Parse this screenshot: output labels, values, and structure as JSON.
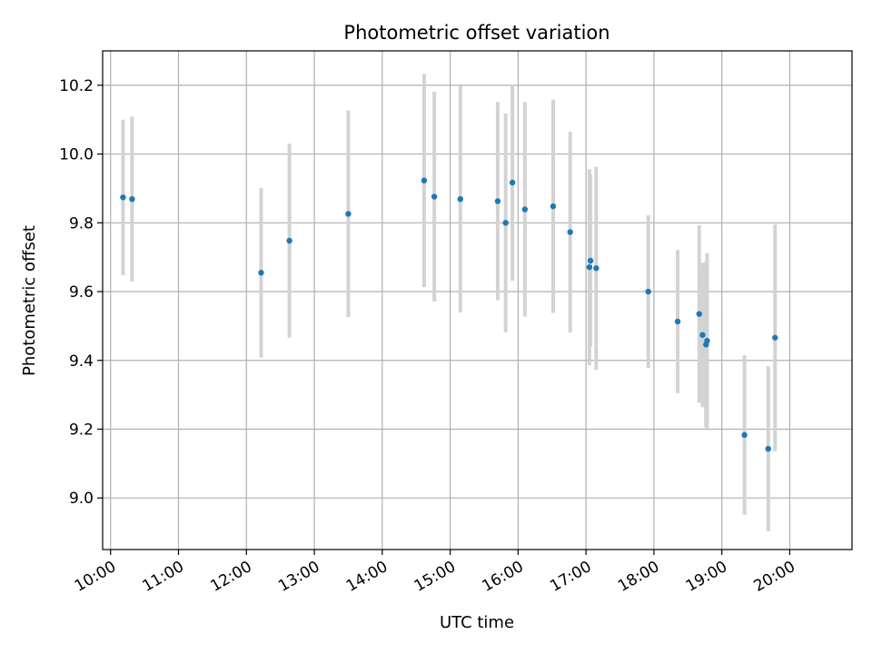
{
  "chart_data": {
    "type": "scatter",
    "title": "Photometric offset variation",
    "xlabel": "UTC time",
    "ylabel": "Photometric offset",
    "x_axis_type": "time",
    "xlim": [
      "09:53",
      "20:55"
    ],
    "ylim": [
      8.85,
      10.3
    ],
    "x_ticks": [
      "10:00",
      "11:00",
      "12:00",
      "13:00",
      "14:00",
      "15:00",
      "16:00",
      "17:00",
      "18:00",
      "19:00",
      "20:00"
    ],
    "y_ticks": [
      9.0,
      9.2,
      9.4,
      9.6,
      9.8,
      10.0,
      10.2
    ],
    "grid": true,
    "point_color": "#1f77b4",
    "errorbar_color": "#d3d3d3",
    "points": [
      {
        "x": "10:11",
        "y": 9.874,
        "yerr": 0.226
      },
      {
        "x": "10:19",
        "y": 9.869,
        "yerr": 0.24
      },
      {
        "x": "12:13",
        "y": 9.655,
        "yerr": 0.247
      },
      {
        "x": "12:38",
        "y": 9.748,
        "yerr": 0.282
      },
      {
        "x": "13:30",
        "y": 9.826,
        "yerr": 0.3
      },
      {
        "x": "14:37",
        "y": 9.923,
        "yerr": 0.31
      },
      {
        "x": "14:46",
        "y": 9.876,
        "yerr": 0.305
      },
      {
        "x": "15:09",
        "y": 9.869,
        "yerr": 0.33
      },
      {
        "x": "15:42",
        "y": 9.863,
        "yerr": 0.288
      },
      {
        "x": "15:49",
        "y": 9.8,
        "yerr": 0.318
      },
      {
        "x": "15:55",
        "y": 9.917,
        "yerr": 0.285
      },
      {
        "x": "16:06",
        "y": 9.839,
        "yerr": 0.312
      },
      {
        "x": "16:31",
        "y": 9.848,
        "yerr": 0.31
      },
      {
        "x": "16:46",
        "y": 9.773,
        "yerr": 0.292
      },
      {
        "x": "17:03",
        "y": 9.671,
        "yerr": 0.285
      },
      {
        "x": "17:04",
        "y": 9.69,
        "yerr": 0.25
      },
      {
        "x": "17:09",
        "y": 9.668,
        "yerr": 0.295
      },
      {
        "x": "17:55",
        "y": 9.6,
        "yerr": 0.222
      },
      {
        "x": "18:21",
        "y": 9.513,
        "yerr": 0.208
      },
      {
        "x": "18:40",
        "y": 9.535,
        "yerr": 0.258
      },
      {
        "x": "18:43",
        "y": 9.474,
        "yerr": 0.21
      },
      {
        "x": "18:46",
        "y": 9.446,
        "yerr": 0.24
      },
      {
        "x": "18:47",
        "y": 9.457,
        "yerr": 0.255
      },
      {
        "x": "19:20",
        "y": 9.183,
        "yerr": 0.232
      },
      {
        "x": "19:41",
        "y": 9.143,
        "yerr": 0.24
      },
      {
        "x": "19:47",
        "y": 9.466,
        "yerr": 0.33
      }
    ]
  }
}
